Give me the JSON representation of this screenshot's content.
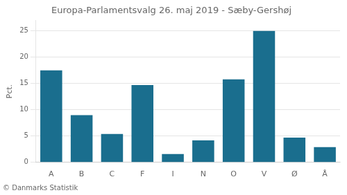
{
  "chart_data": {
    "type": "bar",
    "title": "Europa-Parlamentsvalg 26. maj 2019 - Sæby-Gershøj",
    "categories": [
      "A",
      "B",
      "C",
      "F",
      "I",
      "N",
      "O",
      "V",
      "Ø",
      "Å"
    ],
    "values": [
      17.5,
      9.0,
      5.4,
      14.7,
      1.6,
      4.2,
      15.8,
      25.0,
      4.7,
      2.9
    ],
    "color": "#1a6e8e",
    "ylabel": "Pct.",
    "ylim": [
      0,
      27
    ],
    "yticks": [
      0,
      5,
      10,
      15,
      20,
      25
    ],
    "grid": true,
    "footer": "© Danmarks Statistik"
  }
}
